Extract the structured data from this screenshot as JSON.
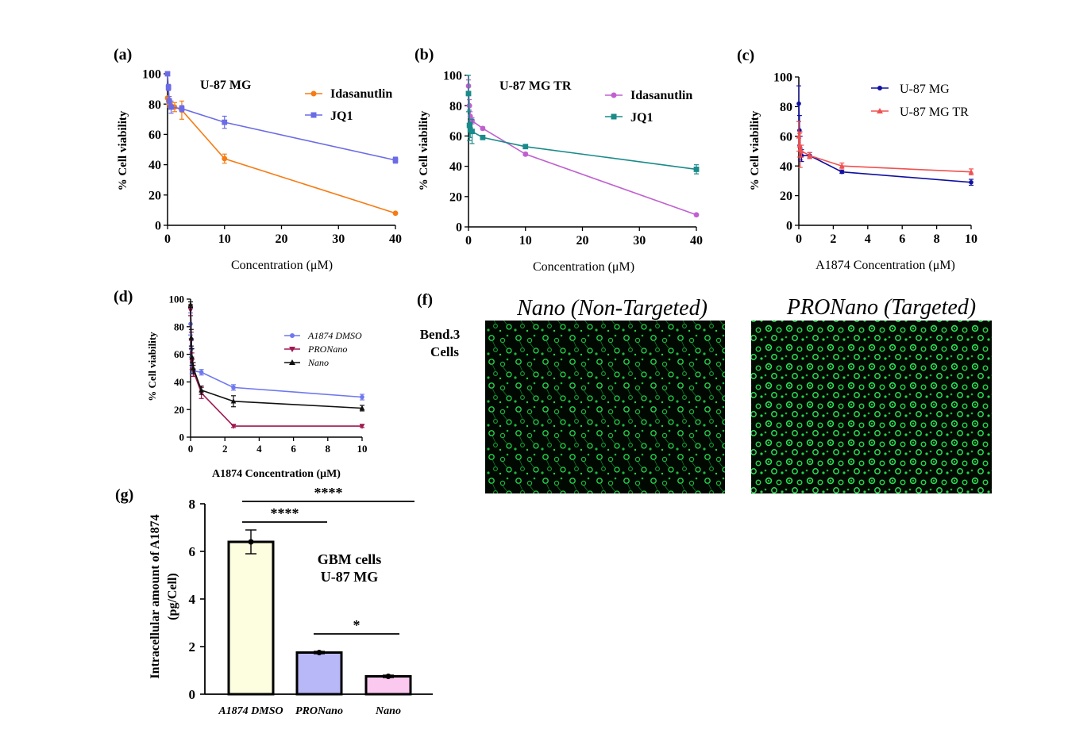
{
  "colors": {
    "orange": "#f57c14",
    "blue_violet": "#6b6be6",
    "violet": "#c060d0",
    "teal": "#1a8a8a",
    "navy": "#1010a0",
    "red": "#f05050",
    "dmso_blue": "#6e78ee",
    "maroon": "#a01850",
    "black": "#111111",
    "bar_yellow": "#fdfde0",
    "bar_lavender": "#b8b8f8",
    "bar_pink": "#fbc8f0",
    "fluor_green": "#22d64a"
  },
  "chart_data": [
    {
      "id": "a",
      "label": "(a)",
      "type": "line",
      "title": "U-87 MG",
      "xlabel": "Concentration (μM)",
      "ylabel": "% Cell viability",
      "xlim": [
        0,
        40
      ],
      "ylim": [
        0,
        100
      ],
      "xticks": [
        0,
        10,
        20,
        30,
        40
      ],
      "yticks": [
        0,
        20,
        40,
        60,
        80,
        100
      ],
      "legend_position": "top-right",
      "series": [
        {
          "name": "Idasanutlin",
          "color_key": "orange",
          "marker": "circle",
          "x": [
            0,
            0.16,
            0.31,
            0.63,
            1.25,
            2.5,
            10,
            40
          ],
          "y": [
            84,
            82,
            80,
            79,
            78,
            76,
            44,
            8
          ],
          "err": [
            0,
            2,
            2,
            2,
            3,
            6,
            3,
            0
          ]
        },
        {
          "name": "JQ1",
          "color_key": "blue_violet",
          "marker": "square",
          "x": [
            0,
            0.16,
            0.31,
            0.63,
            2.5,
            10,
            40
          ],
          "y": [
            100,
            91,
            82,
            78,
            77,
            68,
            43
          ],
          "err": [
            0,
            2,
            3,
            4,
            2,
            4,
            2
          ]
        }
      ]
    },
    {
      "id": "b",
      "label": "(b)",
      "type": "line",
      "title": "U-87 MG TR",
      "xlabel": "Concentration (μM)",
      "ylabel": "% Cell viability",
      "xlim": [
        0,
        40
      ],
      "ylim": [
        0,
        100
      ],
      "xticks": [
        0,
        10,
        20,
        30,
        40
      ],
      "yticks": [
        0,
        20,
        40,
        60,
        80,
        100
      ],
      "legend_position": "top-right",
      "series": [
        {
          "name": "Idasanutlin",
          "color_key": "violet",
          "marker": "circle",
          "x": [
            0,
            0.16,
            0.31,
            0.63,
            2.5,
            10,
            40
          ],
          "y": [
            93,
            80,
            73,
            70,
            65,
            48,
            8
          ],
          "err": [
            4,
            4,
            3,
            2,
            1,
            1,
            0
          ]
        },
        {
          "name": "JQ1",
          "color_key": "teal",
          "marker": "square",
          "x": [
            0,
            0.16,
            0.31,
            0.63,
            2.5,
            10,
            40
          ],
          "y": [
            88,
            67,
            64,
            63,
            59,
            53,
            38
          ],
          "err": [
            12,
            10,
            5,
            8,
            1,
            1,
            3
          ]
        }
      ]
    },
    {
      "id": "c",
      "label": "(c)",
      "type": "line",
      "title": "",
      "xlabel": "A1874 Concentration (μM)",
      "ylabel": "% Cell viability",
      "xlim": [
        0,
        10
      ],
      "ylim": [
        0,
        100
      ],
      "xticks": [
        0,
        2,
        4,
        6,
        8,
        10
      ],
      "yticks": [
        0,
        20,
        40,
        60,
        80,
        100
      ],
      "legend_position": "top-right",
      "series": [
        {
          "name": "U-87 MG",
          "color_key": "navy",
          "marker": "circle",
          "x": [
            0,
            0.04,
            0.08,
            0.16,
            0.63,
            2.5,
            10
          ],
          "y": [
            82,
            64,
            52,
            47,
            47,
            36,
            29
          ],
          "err": [
            12,
            10,
            8,
            4,
            2,
            1,
            2
          ]
        },
        {
          "name": "U-87 MG TR",
          "color_key": "red",
          "marker": "triangle",
          "x": [
            0,
            0.04,
            0.08,
            0.16,
            0.63,
            2.5,
            10
          ],
          "y": [
            60,
            54,
            51,
            50,
            47,
            40,
            36
          ],
          "err": [
            10,
            8,
            12,
            4,
            2,
            2,
            2
          ]
        }
      ]
    },
    {
      "id": "d",
      "label": "(d)",
      "type": "line",
      "title": "",
      "xlabel": "A1874 Concentration (μM)",
      "ylabel": "% Cell viability",
      "xlim": [
        0,
        10
      ],
      "ylim": [
        0,
        100
      ],
      "xticks": [
        0,
        2,
        4,
        6,
        8,
        10
      ],
      "yticks": [
        0,
        20,
        40,
        60,
        80,
        100
      ],
      "legend_position": "top-right",
      "series": [
        {
          "name": "A1874 DMSO",
          "color_key": "dmso_blue",
          "marker": "circle",
          "x": [
            0,
            0.04,
            0.08,
            0.16,
            0.63,
            2.5,
            10
          ],
          "y": [
            82,
            64,
            52,
            48,
            47,
            36,
            29
          ],
          "err": [
            8,
            6,
            6,
            4,
            2,
            2,
            2
          ]
        },
        {
          "name": "PRONano",
          "color_key": "maroon",
          "marker": "triangle-down",
          "x": [
            0,
            0.04,
            0.08,
            0.16,
            0.63,
            2.5,
            10
          ],
          "y": [
            92,
            70,
            55,
            48,
            32,
            8,
            8
          ],
          "err": [
            4,
            6,
            6,
            4,
            4,
            1,
            1
          ]
        },
        {
          "name": "Nano",
          "color_key": "black",
          "marker": "triangle",
          "x": [
            0,
            0.04,
            0.08,
            0.16,
            0.63,
            2.5,
            10
          ],
          "y": [
            96,
            72,
            58,
            50,
            34,
            26,
            21
          ],
          "err": [
            2,
            6,
            6,
            4,
            3,
            4,
            2
          ]
        }
      ]
    },
    {
      "id": "g",
      "label": "(g)",
      "type": "bar",
      "categories": [
        "A1874 DMSO",
        "PRONano",
        "Nano"
      ],
      "values": [
        6.4,
        1.75,
        0.75
      ],
      "err": [
        0.5,
        0.05,
        0.05
      ],
      "fill_keys": [
        "bar_yellow",
        "bar_lavender",
        "bar_pink"
      ],
      "ylabel_line1": "Intracellular amount of A1874",
      "ylabel_line2": "(pg/Cell)",
      "ylim": [
        0,
        8
      ],
      "yticks": [
        0,
        2,
        4,
        6,
        8
      ],
      "annotation_line1": "GBM cells",
      "annotation_line2": "U-87 MG",
      "significance": [
        {
          "from": 0,
          "to": 2,
          "label": "****"
        },
        {
          "from": 0,
          "to": 1,
          "label": "****"
        },
        {
          "from": 1,
          "to": 2,
          "label": "*"
        }
      ]
    }
  ],
  "panel_f": {
    "label": "(f)",
    "row_label_line1": "Bend.3",
    "row_label_line2": "Cells",
    "images": [
      {
        "title": "Nano (Non-Targeted)"
      },
      {
        "title": "PRONano (Targeted)"
      }
    ]
  }
}
